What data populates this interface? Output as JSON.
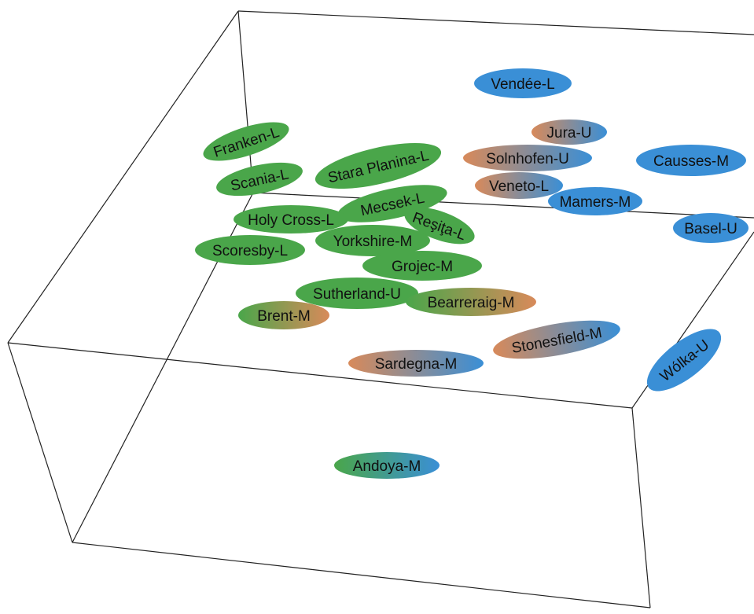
{
  "colors": {
    "green": "#4aa64a",
    "blue": "#3a8fd6",
    "orange": "#d88a5a"
  },
  "chart_data": {
    "type": "scatter",
    "view": "3d-box",
    "points": [
      {
        "label": "Vendée-L",
        "fill": [
          "blue"
        ]
      },
      {
        "label": "Jura-U",
        "fill": [
          "orange",
          "blue"
        ]
      },
      {
        "label": "Solnhofen-U",
        "fill": [
          "orange",
          "blue"
        ]
      },
      {
        "label": "Causses-M",
        "fill": [
          "blue"
        ]
      },
      {
        "label": "Veneto-L",
        "fill": [
          "orange",
          "blue"
        ]
      },
      {
        "label": "Mamers-M",
        "fill": [
          "blue"
        ]
      },
      {
        "label": "Basel-U",
        "fill": [
          "blue"
        ]
      },
      {
        "label": "Franken-L",
        "fill": [
          "green"
        ]
      },
      {
        "label": "Scania-L",
        "fill": [
          "green"
        ]
      },
      {
        "label": "Stara Planina-L",
        "fill": [
          "green"
        ]
      },
      {
        "label": "Mecsek-L",
        "fill": [
          "green"
        ]
      },
      {
        "label": "Holy Cross-L",
        "fill": [
          "green"
        ]
      },
      {
        "label": "Reşiţa-L",
        "fill": [
          "green"
        ]
      },
      {
        "label": "Yorkshire-M",
        "fill": [
          "green"
        ]
      },
      {
        "label": "Scoresby-L",
        "fill": [
          "green"
        ]
      },
      {
        "label": "Grojec-M",
        "fill": [
          "green"
        ]
      },
      {
        "label": "Sutherland-U",
        "fill": [
          "green"
        ]
      },
      {
        "label": "Bearreraig-M",
        "fill": [
          "green",
          "orange"
        ]
      },
      {
        "label": "Brent-M",
        "fill": [
          "green",
          "orange"
        ]
      },
      {
        "label": "Stonesfield-M",
        "fill": [
          "orange",
          "blue"
        ]
      },
      {
        "label": "Sardegna-M",
        "fill": [
          "orange",
          "blue"
        ]
      },
      {
        "label": "Wólka-U",
        "fill": [
          "blue"
        ]
      },
      {
        "label": "Andoya-M",
        "fill": [
          "green",
          "blue"
        ]
      }
    ]
  }
}
